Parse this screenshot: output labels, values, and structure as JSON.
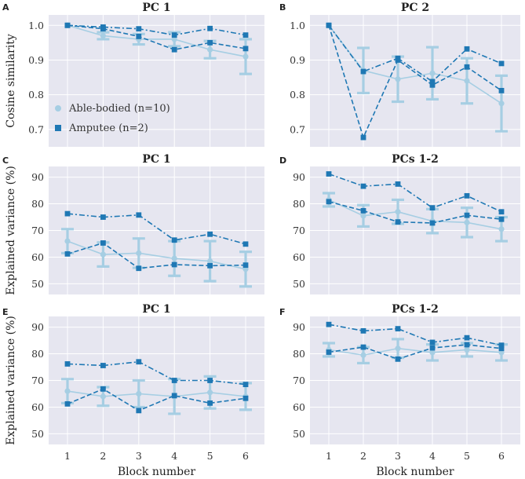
{
  "colors": {
    "able": "#a6cee3",
    "amp": "#1f78b4",
    "panel_bg": "#e6e6f0"
  },
  "legend": [
    {
      "name": "Able-bodied (n=10)",
      "marker": "circle"
    },
    {
      "name": "Amputee (n=2)",
      "marker": "square"
    }
  ],
  "chart_data": [
    {
      "id": "A",
      "type": "line",
      "title": "PC 1",
      "ylabel": "Cosine similarity",
      "xlabel": "",
      "x": [
        1,
        2,
        3,
        4,
        5,
        6
      ],
      "ylim": [
        0.65,
        1.03
      ],
      "yticks": [
        0.7,
        0.8,
        0.9,
        1.0
      ],
      "yticklabels": [
        "0.7",
        "0.8",
        "0.9",
        "1.0"
      ],
      "xticklabels": [],
      "able": {
        "mean": [
          1.0,
          0.97,
          0.96,
          0.96,
          0.93,
          0.91
        ],
        "sd": [
          0.0,
          0.01,
          0.015,
          0.02,
          0.025,
          0.05
        ]
      },
      "amp": [
        {
          "style": "dashdot",
          "values": [
            1.0,
            0.995,
            0.99,
            0.972,
            0.991,
            0.972
          ]
        },
        {
          "style": "dashed",
          "values": [
            1.0,
            0.99,
            0.968,
            0.93,
            0.95,
            0.933
          ]
        }
      ]
    },
    {
      "id": "B",
      "type": "line",
      "title": "PC 2",
      "ylabel": "",
      "xlabel": "",
      "x": [
        1,
        2,
        3,
        4,
        5,
        6
      ],
      "ylim": [
        0.65,
        1.03
      ],
      "yticks": [
        0.7,
        0.8,
        0.9,
        1.0
      ],
      "yticklabels": [
        "0.7",
        "0.8",
        "0.9",
        "1.0"
      ],
      "xticklabels": [],
      "able": {
        "mean": [
          1.0,
          0.87,
          0.845,
          0.862,
          0.84,
          0.775
        ],
        "sd": [
          0.0,
          0.065,
          0.065,
          0.075,
          0.065,
          0.08
        ]
      },
      "amp": [
        {
          "style": "dashdot",
          "values": [
            1.0,
            0.867,
            0.905,
            0.838,
            0.932,
            0.89
          ]
        },
        {
          "style": "dashed",
          "values": [
            1.0,
            0.677,
            0.9,
            0.828,
            0.88,
            0.812
          ]
        }
      ]
    },
    {
      "id": "C",
      "type": "line",
      "title": "PC 1",
      "ylabel": "Explained variance (%)",
      "xlabel": "",
      "x": [
        1,
        2,
        3,
        4,
        5,
        6
      ],
      "ylim": [
        46,
        94
      ],
      "yticks": [
        50,
        60,
        70,
        80,
        90
      ],
      "yticklabels": [
        "50",
        "60",
        "70",
        "80",
        "90"
      ],
      "xticklabels": [],
      "able": {
        "mean": [
          66,
          61,
          61.5,
          59.5,
          58.5,
          55.5
        ],
        "sd": [
          4.5,
          4.5,
          5.5,
          6.5,
          7.5,
          6.5
        ]
      },
      "amp": [
        {
          "style": "dashdot",
          "values": [
            76.3,
            75,
            75.8,
            66.4,
            68.6,
            64.9
          ]
        },
        {
          "style": "dashed",
          "values": [
            61.2,
            65.3,
            55.8,
            57.2,
            56.8,
            57
          ]
        }
      ]
    },
    {
      "id": "D",
      "type": "line",
      "title": "PCs 1-2",
      "ylabel": "",
      "xlabel": "",
      "x": [
        1,
        2,
        3,
        4,
        5,
        6
      ],
      "ylim": [
        46,
        94
      ],
      "yticks": [
        50,
        60,
        70,
        80,
        90
      ],
      "yticklabels": [
        "50",
        "60",
        "70",
        "80",
        "90"
      ],
      "xticklabels": [],
      "able": {
        "mean": [
          81.5,
          75.5,
          77,
          73.5,
          73,
          70.5
        ],
        "sd": [
          2.5,
          4,
          4.5,
          4.5,
          5.5,
          4.5
        ]
      },
      "amp": [
        {
          "style": "dashdot",
          "values": [
            91.2,
            86.6,
            87.4,
            78.5,
            83,
            77
          ]
        },
        {
          "style": "dashed",
          "values": [
            80.8,
            77.4,
            73.2,
            72.8,
            75.7,
            74.2
          ]
        }
      ]
    },
    {
      "id": "E",
      "type": "line",
      "title": "PC 1",
      "ylabel": "Explained variance (%)",
      "xlabel": "Block number",
      "x": [
        1,
        2,
        3,
        4,
        5,
        6
      ],
      "ylim": [
        46,
        94
      ],
      "yticks": [
        50,
        60,
        70,
        80,
        90
      ],
      "yticklabels": [
        "50",
        "60",
        "70",
        "80",
        "90"
      ],
      "xticklabels": [
        "1",
        "2",
        "3",
        "4",
        "5",
        "6"
      ],
      "able": {
        "mean": [
          66,
          64,
          65,
          64,
          65.5,
          64
        ],
        "sd": [
          4.5,
          3.5,
          5,
          6.5,
          6,
          5
        ]
      },
      "amp": [
        {
          "style": "dashdot",
          "values": [
            76.2,
            75.6,
            77,
            70,
            70,
            68.5
          ]
        },
        {
          "style": "dashed",
          "values": [
            61.2,
            66.8,
            58.7,
            64.3,
            61.5,
            63.3
          ]
        }
      ]
    },
    {
      "id": "F",
      "type": "line",
      "title": "PCs 1-2",
      "ylabel": "",
      "xlabel": "Block number",
      "x": [
        1,
        2,
        3,
        4,
        5,
        6
      ],
      "ylim": [
        46,
        94
      ],
      "yticks": [
        50,
        60,
        70,
        80,
        90
      ],
      "yticklabels": [
        "50",
        "60",
        "70",
        "80",
        "90"
      ],
      "xticklabels": [
        "1",
        "2",
        "3",
        "4",
        "5",
        "6"
      ],
      "able": {
        "mean": [
          81.5,
          79.5,
          82,
          80.5,
          81.5,
          80.5
        ],
        "sd": [
          2.5,
          3,
          3.5,
          3,
          2.5,
          3
        ]
      },
      "amp": [
        {
          "style": "dashdot",
          "values": [
            91,
            88.6,
            89.4,
            84.3,
            86,
            83.2
          ]
        },
        {
          "style": "dashed",
          "values": [
            80.6,
            82.5,
            78,
            82.2,
            83.4,
            82
          ]
        }
      ]
    }
  ]
}
